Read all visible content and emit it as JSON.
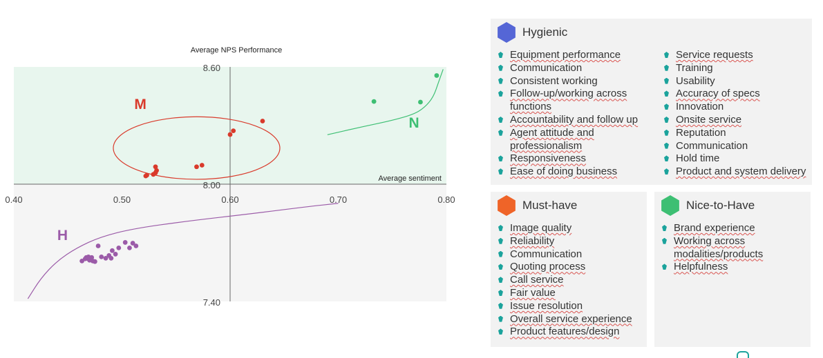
{
  "chart_data": {
    "type": "scatter",
    "title": "Average NPS Performance",
    "xlabel": "Average sentiment",
    "ylabel": "",
    "xlim": [
      0.4,
      0.8
    ],
    "ylim": [
      7.4,
      8.6
    ],
    "x_ticks": [
      "0.40",
      "0.50",
      "0.60",
      "0.70",
      "0.80"
    ],
    "y_ticks": [
      "8.60",
      "8.00",
      "7.40"
    ],
    "grid": false,
    "regions": [
      {
        "name": "upper",
        "color": "#e8f6ee",
        "y_range": [
          8.0,
          8.6
        ]
      },
      {
        "name": "lower",
        "color": "#f5f5f5",
        "y_range": [
          7.4,
          8.0
        ]
      }
    ],
    "series": [
      {
        "name": "M",
        "color": "#d93a2b",
        "points": [
          [
            0.522,
            8.042
          ],
          [
            0.523,
            8.046
          ],
          [
            0.529,
            8.05
          ],
          [
            0.531,
            8.058
          ],
          [
            0.532,
            8.07
          ],
          [
            0.531,
            8.089
          ],
          [
            0.569,
            8.089
          ],
          [
            0.574,
            8.097
          ],
          [
            0.6,
            8.254
          ],
          [
            0.603,
            8.273
          ],
          [
            0.63,
            8.323
          ]
        ]
      },
      {
        "name": "N",
        "color": "#3dbf73",
        "points": [
          [
            0.733,
            8.423
          ],
          [
            0.776,
            8.42
          ],
          [
            0.791,
            8.556
          ]
        ]
      },
      {
        "name": "H",
        "color": "#9b5ba8",
        "points": [
          [
            0.463,
            7.607
          ],
          [
            0.466,
            7.618
          ],
          [
            0.467,
            7.625
          ],
          [
            0.469,
            7.618
          ],
          [
            0.47,
            7.611
          ],
          [
            0.469,
            7.628
          ],
          [
            0.472,
            7.625
          ],
          [
            0.473,
            7.607
          ],
          [
            0.475,
            7.604
          ],
          [
            0.478,
            7.684
          ],
          [
            0.481,
            7.628
          ],
          [
            0.485,
            7.621
          ],
          [
            0.488,
            7.635
          ],
          [
            0.49,
            7.621
          ],
          [
            0.491,
            7.66
          ],
          [
            0.494,
            7.642
          ],
          [
            0.497,
            7.674
          ],
          [
            0.503,
            7.702
          ],
          [
            0.507,
            7.674
          ],
          [
            0.51,
            7.698
          ],
          [
            0.513,
            7.684
          ]
        ]
      }
    ],
    "annotations": [
      {
        "text": "M",
        "x": 0.517,
        "y": 8.385,
        "color": "#d93a2b"
      },
      {
        "text": "N",
        "x": 0.77,
        "y": 8.29,
        "color": "#3dbf73"
      },
      {
        "text": "H",
        "x": 0.445,
        "y": 7.715,
        "color": "#9b5ba8"
      }
    ],
    "cluster_ellipse": {
      "cx": 0.569,
      "cy": 8.185,
      "rx": 0.077,
      "ry": 0.16,
      "color": "#d93a2b"
    },
    "trend_curves": [
      {
        "name": "N curve",
        "color": "#3dbf73",
        "points": [
          [
            0.69,
            8.253
          ],
          [
            0.72,
            8.291
          ],
          [
            0.75,
            8.326
          ],
          [
            0.77,
            8.358
          ],
          [
            0.78,
            8.393
          ],
          [
            0.788,
            8.446
          ],
          [
            0.793,
            8.526
          ],
          [
            0.797,
            8.588
          ]
        ]
      },
      {
        "name": "H curve",
        "color": "#9b5ba8",
        "points": [
          [
            0.413,
            7.414
          ],
          [
            0.425,
            7.519
          ],
          [
            0.44,
            7.607
          ],
          [
            0.458,
            7.674
          ],
          [
            0.48,
            7.73
          ],
          [
            0.51,
            7.772
          ],
          [
            0.56,
            7.811
          ],
          [
            0.62,
            7.849
          ],
          [
            0.67,
            7.884
          ],
          [
            0.7,
            7.902
          ]
        ]
      }
    ]
  },
  "panels": {
    "hygienic": {
      "title": "Hygienic",
      "color": "#5566d6",
      "col1": [
        {
          "text": "Equipment performance",
          "spell": true
        },
        {
          "text": "Communication",
          "spell": false
        },
        {
          "text": "Consistent working",
          "spell": false
        },
        {
          "text": "Follow-up/working across functions",
          "spell": true
        },
        {
          "text": "Accountability and follow up",
          "spell": true
        },
        {
          "text": "Agent attitude and professionalism",
          "spell": true
        },
        {
          "text": "Responsiveness",
          "spell": true
        },
        {
          "text": "Ease of doing business",
          "spell": true
        }
      ],
      "col2": [
        {
          "text": "Service requests",
          "spell": true
        },
        {
          "text": "Training",
          "spell": false
        },
        {
          "text": "Usability",
          "spell": false
        },
        {
          "text": "Accuracy of specs",
          "spell": true
        },
        {
          "text": "Innovation",
          "spell": false
        },
        {
          "text": "Onsite service",
          "spell": true
        },
        {
          "text": "Reputation",
          "spell": false
        },
        {
          "text": "Communication",
          "spell": false
        },
        {
          "text": "Hold time",
          "spell": false
        },
        {
          "text": "Product and system delivery",
          "spell": true
        }
      ]
    },
    "must_have": {
      "title": "Must-have",
      "color": "#ef6428",
      "items": [
        {
          "text": "Image quality",
          "spell": true
        },
        {
          "text": "Reliability",
          "spell": true
        },
        {
          "text": "Communication",
          "spell": false
        },
        {
          "text": "Quoting process",
          "spell": true
        },
        {
          "text": "Call service",
          "spell": true
        },
        {
          "text": "Fair value",
          "spell": true
        },
        {
          "text": "Issue resolution",
          "spell": true
        },
        {
          "text": "Overall service experience",
          "spell": true
        },
        {
          "text": "Product features/design",
          "spell": true
        }
      ]
    },
    "nice_to_have": {
      "title": "Nice-to-Have",
      "color": "#3dbf73",
      "items": [
        {
          "text": "Brand experience",
          "spell": true
        },
        {
          "text": "Working across modalities/products",
          "spell": true
        },
        {
          "text": "Helpfulness",
          "spell": true
        }
      ]
    }
  }
}
